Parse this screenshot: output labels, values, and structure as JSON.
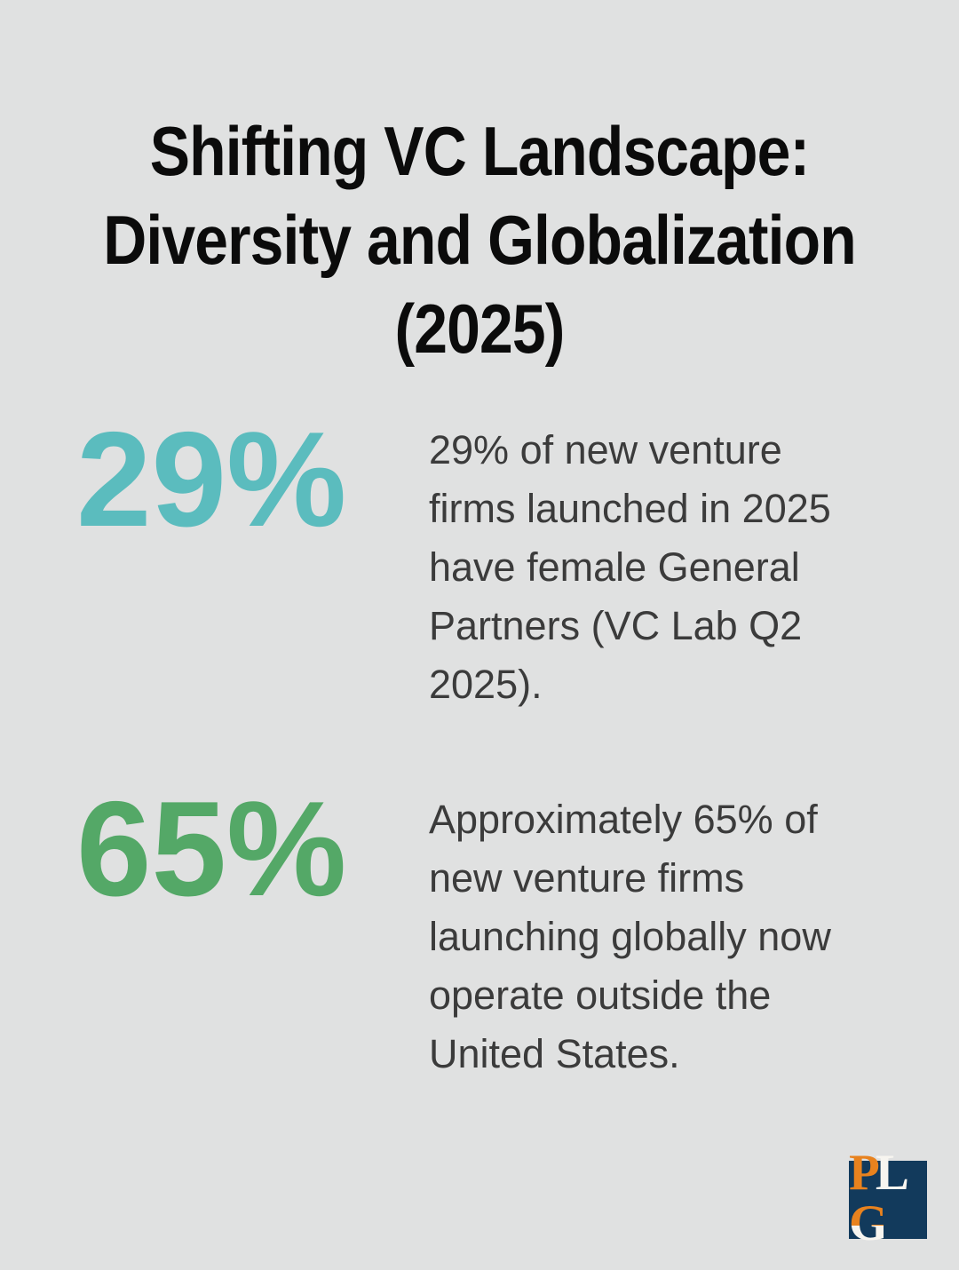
{
  "page": {
    "background_color": "#E0E1E1",
    "body_text_color": "#3B3B3B",
    "title_color": "#0B0B0B"
  },
  "title": {
    "text": "Shifting VC Landscape:\nDiversity and Globalization\n(2025)"
  },
  "stats": [
    {
      "value": "29%",
      "value_color": "#5BBCBE",
      "description": "29% of new venture\nfirms launched in 2025\nhave female General\nPartners (VC Lab Q2\n2025)."
    },
    {
      "value": "65%",
      "value_color": "#54A867",
      "description": "Approximately 65% of\nnew venture firms\nlaunching globally now\noperate outside the\nUnited States."
    }
  ],
  "logo": {
    "background_color": "#123A5C",
    "letters": [
      {
        "char": "P",
        "color": "#E8821E"
      },
      {
        "char": "L",
        "color": "#F7F5F0"
      },
      {
        "char": "G",
        "color": "#E8821E",
        "secondary_color": "#F7F5F0"
      }
    ]
  }
}
